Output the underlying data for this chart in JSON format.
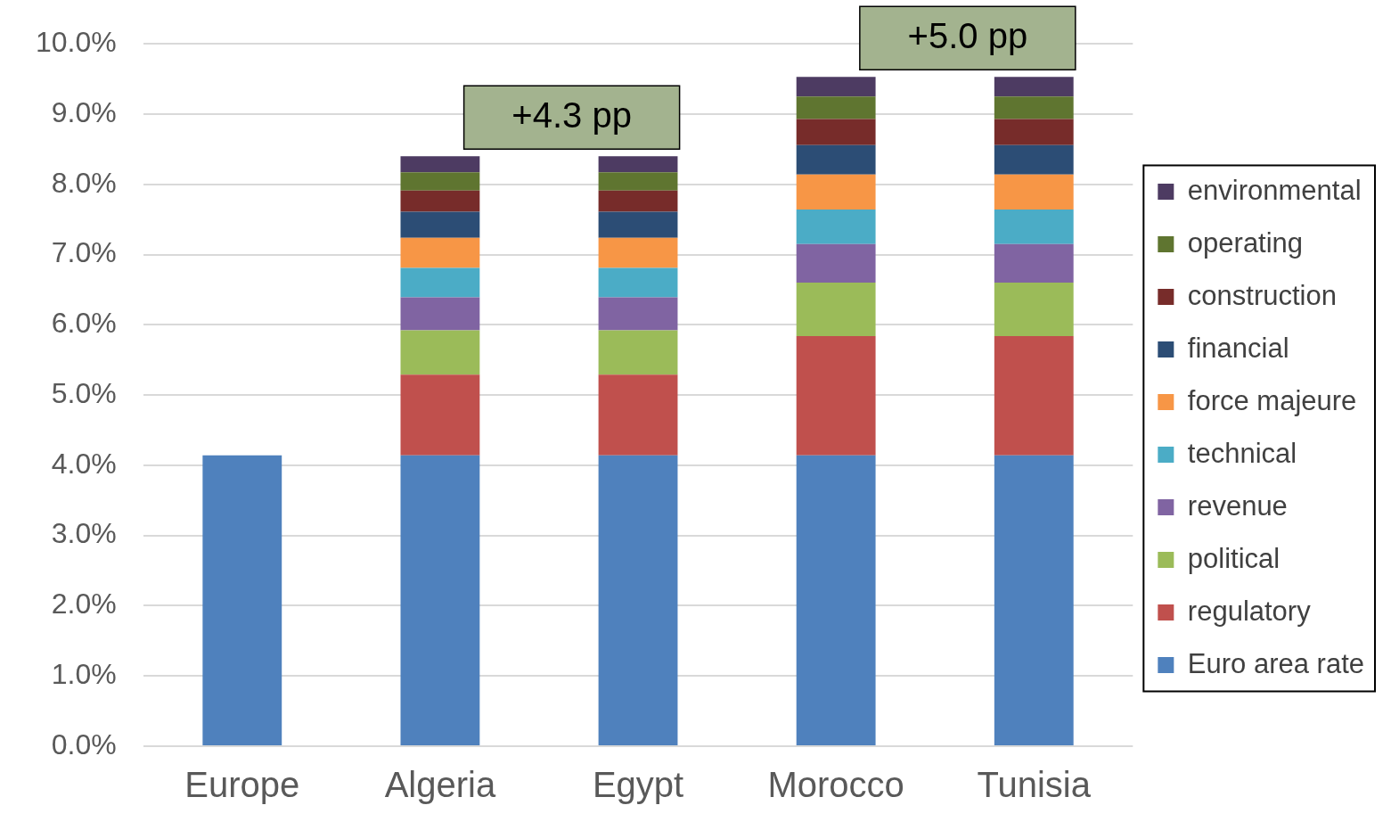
{
  "chart_data": {
    "type": "bar",
    "stacked": true,
    "categories": [
      "Europe",
      "Algeria",
      "Egypt",
      "Morocco",
      "Tunisia"
    ],
    "series": [
      {
        "name": "Euro area rate",
        "color": "#4f81bd",
        "values": [
          4.14,
          4.14,
          4.14,
          4.14,
          4.14
        ]
      },
      {
        "name": "regulatory",
        "color": "#c0504d",
        "values": [
          null,
          1.15,
          1.15,
          1.7,
          1.7
        ]
      },
      {
        "name": "political",
        "color": "#9bbb59",
        "values": [
          null,
          0.63,
          0.63,
          0.76,
          0.76
        ]
      },
      {
        "name": "revenue",
        "color": "#8064a2",
        "values": [
          null,
          0.47,
          0.47,
          0.55,
          0.55
        ]
      },
      {
        "name": "technical",
        "color": "#4bacc6",
        "values": [
          null,
          0.42,
          0.42,
          0.49,
          0.49
        ]
      },
      {
        "name": "force majeure",
        "color": "#f79646",
        "values": [
          null,
          0.43,
          0.43,
          0.5,
          0.5
        ]
      },
      {
        "name": "financial",
        "color": "#2c4d75",
        "values": [
          null,
          0.37,
          0.37,
          0.42,
          0.42
        ]
      },
      {
        "name": "construction",
        "color": "#772c2a",
        "values": [
          null,
          0.3,
          0.3,
          0.37,
          0.37
        ]
      },
      {
        "name": "operating",
        "color": "#5f7530",
        "values": [
          null,
          0.26,
          0.26,
          0.32,
          0.32
        ]
      },
      {
        "name": "environmental",
        "color": "#4d3b62",
        "values": [
          null,
          0.23,
          0.23,
          0.28,
          0.28
        ]
      }
    ],
    "ylim": [
      0,
      10
    ],
    "yticks": [
      {
        "value": 0,
        "label": "0.0%"
      },
      {
        "value": 1,
        "label": "1.0%"
      },
      {
        "value": 2,
        "label": "2.0%"
      },
      {
        "value": 3,
        "label": "3.0%"
      },
      {
        "value": 4,
        "label": "4.0%"
      },
      {
        "value": 5,
        "label": "5.0%"
      },
      {
        "value": 6,
        "label": "6.0%"
      },
      {
        "value": 7,
        "label": "7.0%"
      },
      {
        "value": 8,
        "label": "8.0%"
      },
      {
        "value": 9,
        "label": "9.0%"
      },
      {
        "value": 10,
        "label": "10.0%"
      }
    ],
    "grid": "y",
    "legend": "right",
    "annotations": [
      "+4.3 pp",
      "+5.0 pp"
    ]
  }
}
